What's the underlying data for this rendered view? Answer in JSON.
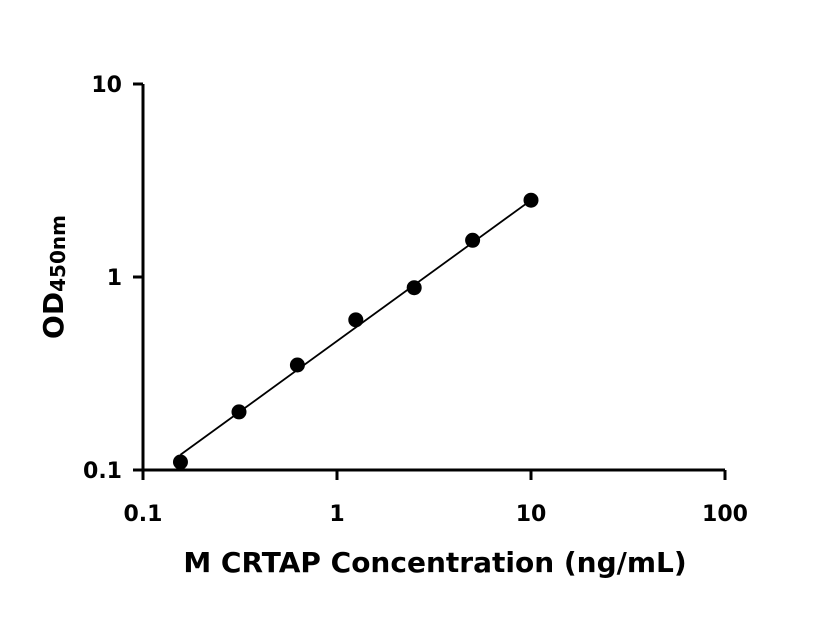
{
  "chart_data": {
    "type": "scatter",
    "title": "",
    "xlabel": "M CRTAP Concentration (ng/mL)",
    "ylabel_main": "OD",
    "ylabel_sub": "450nm",
    "x_scale": "log",
    "y_scale": "log",
    "xlim": [
      0.1,
      100
    ],
    "ylim": [
      0.1,
      10
    ],
    "x_ticks": [
      0.1,
      1,
      10,
      100
    ],
    "x_tick_labels": [
      "0.1",
      "1",
      "10",
      "100"
    ],
    "y_ticks": [
      0.1,
      1,
      10
    ],
    "y_tick_labels": [
      "0.1",
      "1",
      "10"
    ],
    "grid": false,
    "legend": "none",
    "points": {
      "x": [
        0.156,
        0.3125,
        0.625,
        1.25,
        2.5,
        5,
        10
      ],
      "y": [
        0.11,
        0.2,
        0.35,
        0.6,
        0.88,
        1.55,
        2.5
      ]
    },
    "fit_line": {
      "x": [
        0.156,
        10
      ],
      "y": [
        0.12,
        2.5
      ]
    },
    "marker_color": "#000000",
    "line_color": "#000000"
  }
}
